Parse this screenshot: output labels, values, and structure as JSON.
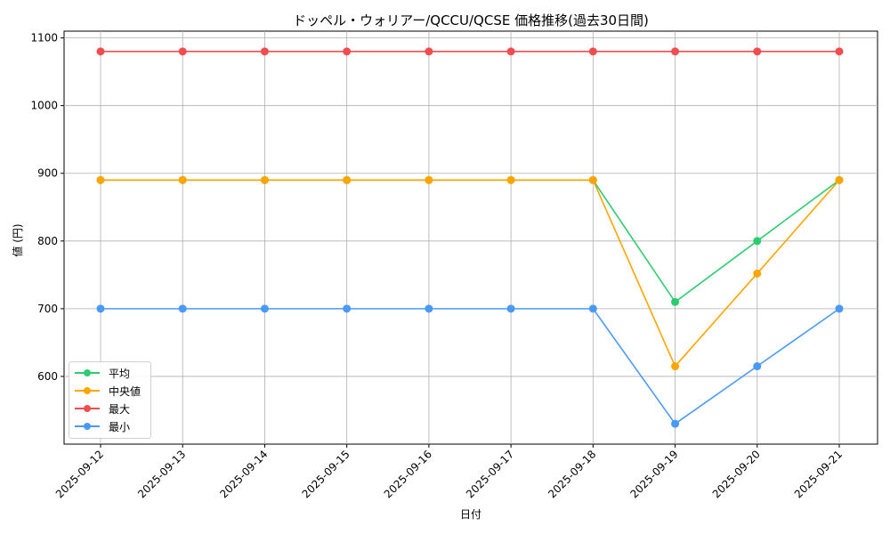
{
  "chart_data": {
    "type": "line",
    "title": "ドッペル・ウォリアー/QCCU/QCSE 価格推移(過去30日間)",
    "xlabel": "日付",
    "ylabel": "値 (円)",
    "categories": [
      "2025-09-12",
      "2025-09-13",
      "2025-09-14",
      "2025-09-15",
      "2025-09-16",
      "2025-09-17",
      "2025-09-18",
      "2025-09-19",
      "2025-09-20",
      "2025-09-21"
    ],
    "ylim": [
      500,
      1110
    ],
    "yticks": [
      600,
      700,
      800,
      900,
      1000,
      1100
    ],
    "grid": true,
    "legend_position": "lower-left",
    "series": [
      {
        "name": "平均",
        "color": "#2ecc71",
        "values": [
          890,
          890,
          890,
          890,
          890,
          890,
          890,
          710,
          800,
          890
        ]
      },
      {
        "name": "中央値",
        "color": "#ffa500",
        "values": [
          890,
          890,
          890,
          890,
          890,
          890,
          890,
          615,
          752,
          890
        ]
      },
      {
        "name": "最大",
        "color": "#f04e4e",
        "values": [
          1080,
          1080,
          1080,
          1080,
          1080,
          1080,
          1080,
          1080,
          1080,
          1080
        ]
      },
      {
        "name": "最小",
        "color": "#4a9af5",
        "values": [
          700,
          700,
          700,
          700,
          700,
          700,
          700,
          530,
          615,
          700
        ]
      }
    ]
  }
}
